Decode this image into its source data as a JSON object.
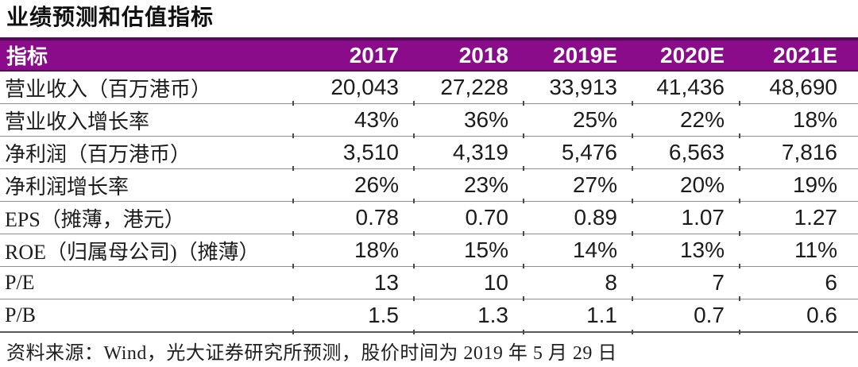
{
  "title": "业绩预测和估值指标",
  "colors": {
    "header_bg": "#8a0c8a",
    "header_border": "#560956",
    "row_line": "#8f8f8f",
    "bottom_line": "#5a5a5a",
    "text": "#1c1c1c"
  },
  "chart_data": {
    "type": "table",
    "title": "业绩预测和估值指标",
    "columns": [
      "指标",
      "2017",
      "2018",
      "2019E",
      "2020E",
      "2021E"
    ],
    "rows": [
      {
        "label": "营业收入（百万港币）",
        "values": [
          "20,043",
          "27,228",
          "33,913",
          "41,436",
          "48,690"
        ]
      },
      {
        "label": "营业收入增长率",
        "values": [
          "43%",
          "36%",
          "25%",
          "22%",
          "18%"
        ]
      },
      {
        "label": "净利润（百万港币）",
        "values": [
          "3,510",
          "4,319",
          "5,476",
          "6,563",
          "7,816"
        ]
      },
      {
        "label": "净利润增长率",
        "values": [
          "26%",
          "23%",
          "27%",
          "20%",
          "19%"
        ]
      },
      {
        "label": "EPS（摊薄，港元）",
        "values": [
          "0.78",
          "0.70",
          "0.89",
          "1.07",
          "1.27"
        ]
      },
      {
        "label": "ROE（归属母公司)（摊薄）",
        "values": [
          "18%",
          "15%",
          "14%",
          "13%",
          "11%"
        ]
      },
      {
        "label": "P/E",
        "values": [
          "13",
          "10",
          "8",
          "7",
          "6"
        ]
      },
      {
        "label": "P/B",
        "values": [
          "1.5",
          "1.3",
          "1.1",
          "0.7",
          "0.6"
        ]
      }
    ]
  },
  "footer": {
    "source": "资料来源：Wind，光大证券研究所预测，股价时间为 2019 年 5 月 29 日"
  }
}
